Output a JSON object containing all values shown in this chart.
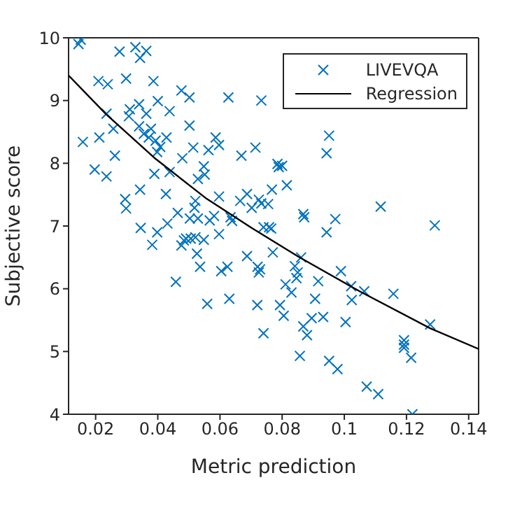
{
  "chart_data": {
    "type": "scatter",
    "xlabel": "Metric prediction",
    "ylabel": "Subjective score",
    "xlim": [
      0.0113,
      0.1432
    ],
    "ylim": [
      4,
      10
    ],
    "xticks": [
      0.02,
      0.04,
      0.06,
      0.08,
      0.1,
      0.12,
      0.14
    ],
    "yticks": [
      4,
      5,
      6,
      7,
      8,
      9,
      10
    ],
    "grid": false,
    "legend": "top right",
    "series": [
      {
        "name": "LIVEVQA",
        "type": "scatter",
        "marker": "cross",
        "color": "#0072bd",
        "x": [
          0.0152,
          0.0145,
          0.0277,
          0.0328,
          0.0363,
          0.0343,
          0.0209,
          0.0239,
          0.0298,
          0.0386,
          0.0476,
          0.0502,
          0.0627,
          0.0733,
          0.034,
          0.031,
          0.04,
          0.0438,
          0.0235,
          0.0307,
          0.0363,
          0.0257,
          0.034,
          0.0378,
          0.0502,
          0.0159,
          0.0212,
          0.0355,
          0.0371,
          0.0393,
          0.0428,
          0.0408,
          0.0398,
          0.0514,
          0.0586,
          0.0597,
          0.0563,
          0.0669,
          0.0714,
          0.0262,
          0.0479,
          0.0548,
          0.0785,
          0.08,
          0.0789,
          0.0197,
          0.0235,
          0.0389,
          0.0438,
          0.0529,
          0.0551,
          0.0343,
          0.0426,
          0.0295,
          0.0298,
          0.0521,
          0.0518,
          0.0464,
          0.0503,
          0.0529,
          0.0567,
          0.0581,
          0.0597,
          0.0634,
          0.0639,
          0.0665,
          0.0687,
          0.0702,
          0.0725,
          0.0733,
          0.0755,
          0.0767,
          0.0345,
          0.0398,
          0.0431,
          0.074,
          0.0758,
          0.0765,
          0.0951,
          0.0943,
          0.0815,
          0.0868,
          0.0871,
          0.0971,
          0.1117,
          0.1291,
          0.0943,
          0.077,
          0.0861,
          0.0721,
          0.0729,
          0.0725,
          0.0841,
          0.085,
          0.0846,
          0.0989,
          0.0811,
          0.083,
          0.0916,
          0.1022,
          0.1064,
          0.1024,
          0.1158,
          0.0906,
          0.072,
          0.0793,
          0.0805,
          0.0895,
          0.0932,
          0.1004,
          0.0868,
          0.088,
          0.074,
          0.1276,
          0.1192,
          0.1192,
          0.1192,
          0.1215,
          0.0857,
          0.0951,
          0.0978,
          0.1072,
          0.1109,
          0.1219,
          0.0382,
          0.0484,
          0.0491,
          0.0476,
          0.0506,
          0.0521,
          0.0548,
          0.0597,
          0.0526,
          0.0536,
          0.0604,
          0.0624,
          0.0687,
          0.0458,
          0.0559,
          0.063
        ],
        "values": [
          9.97,
          9.9,
          9.78,
          9.85,
          9.79,
          9.68,
          9.31,
          9.26,
          9.35,
          9.31,
          9.16,
          9.05,
          9.05,
          9.0,
          8.94,
          8.86,
          8.99,
          8.83,
          8.79,
          8.75,
          8.79,
          8.55,
          8.59,
          8.55,
          8.6,
          8.34,
          8.41,
          8.47,
          8.41,
          8.36,
          8.41,
          8.26,
          8.18,
          8.25,
          8.41,
          8.29,
          8.21,
          8.12,
          8.25,
          8.12,
          8.08,
          7.95,
          7.99,
          7.96,
          7.94,
          7.9,
          7.79,
          7.83,
          7.86,
          7.75,
          7.82,
          7.58,
          7.51,
          7.43,
          7.28,
          7.4,
          7.29,
          7.21,
          7.12,
          7.12,
          7.09,
          7.16,
          7.47,
          7.14,
          7.08,
          7.4,
          7.51,
          7.29,
          7.42,
          7.36,
          7.35,
          7.58,
          6.97,
          6.9,
          7.04,
          6.98,
          6.98,
          6.96,
          8.44,
          8.16,
          7.65,
          7.19,
          7.14,
          7.11,
          7.31,
          7.01,
          6.9,
          6.58,
          6.5,
          6.35,
          6.31,
          6.26,
          6.36,
          6.26,
          6.17,
          6.28,
          6.07,
          5.94,
          6.12,
          6.04,
          5.96,
          5.82,
          5.92,
          5.84,
          5.74,
          5.74,
          5.57,
          5.53,
          5.55,
          5.47,
          5.4,
          5.26,
          5.29,
          5.43,
          5.18,
          5.11,
          5.06,
          4.9,
          4.93,
          4.85,
          4.72,
          4.44,
          4.32,
          4.0,
          6.7,
          6.77,
          6.8,
          6.69,
          6.8,
          6.82,
          6.78,
          6.87,
          6.56,
          6.35,
          6.28,
          6.35,
          6.52,
          6.11,
          5.76,
          5.84
        ]
      },
      {
        "name": "Regression",
        "type": "line",
        "color": "#000000",
        "x": [
          0.0113,
          0.0234,
          0.0393,
          0.0553,
          0.0702,
          0.0853,
          0.1049,
          0.1276,
          0.1432
        ],
        "values": [
          9.4,
          8.78,
          8.07,
          7.45,
          6.97,
          6.51,
          5.96,
          5.37,
          5.04
        ]
      }
    ]
  }
}
